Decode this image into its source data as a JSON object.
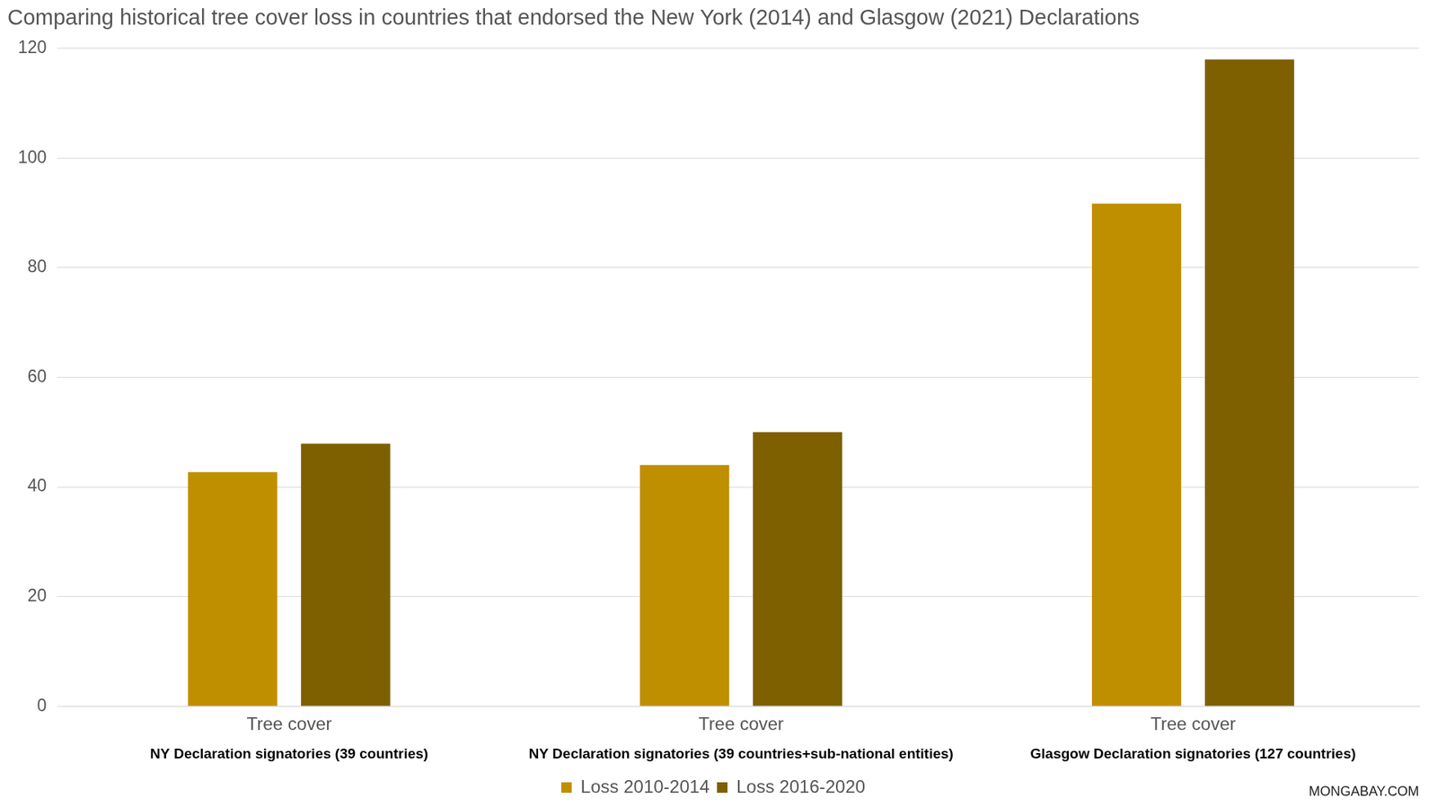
{
  "chart_data": {
    "type": "bar",
    "title": "Comparing historical tree cover loss in countries that endorsed the New York (2014) and Glasgow (2021) Declarations",
    "categories": [
      "Tree cover",
      "Tree cover",
      "Tree cover"
    ],
    "category_groups": [
      "NY Declaration signatories (39 countries)",
      "NY Declaration signatories (39 countries+sub-national entities)",
      "Glasgow Declaration signatories (127 countries)"
    ],
    "series": [
      {
        "name": "Loss 2010-2014",
        "color": "#bf8f00",
        "values": [
          42.7,
          44,
          91.7
        ]
      },
      {
        "name": "Loss 2016-2020",
        "color": "#7f6000",
        "values": [
          47.9,
          50,
          118
        ]
      }
    ],
    "ylim": [
      0,
      120
    ],
    "yticks": [
      0,
      20,
      40,
      60,
      80,
      100,
      120
    ],
    "grid": true,
    "legend": "bottom",
    "source": "MONGABAY.COM"
  }
}
